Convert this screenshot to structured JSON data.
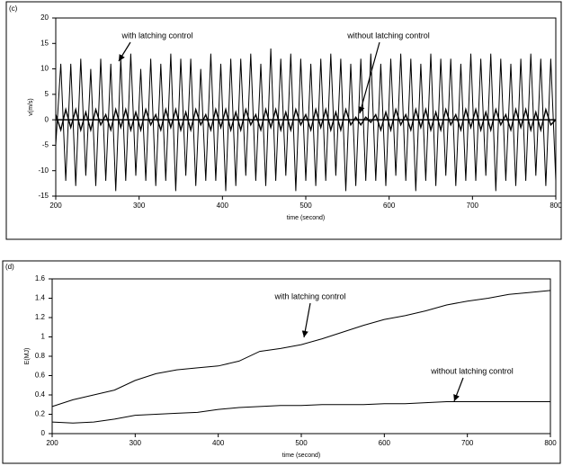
{
  "chart_data": [
    {
      "type": "line",
      "panel_label": "(c)",
      "xlabel": "time (second)",
      "ylabel": "v(m/s)",
      "xlim": [
        200,
        800
      ],
      "ylim": [
        -15,
        20
      ],
      "xticks": [
        200,
        300,
        400,
        500,
        600,
        700,
        800
      ],
      "yticks": [
        -15,
        -10,
        -5,
        0,
        5,
        10,
        15,
        20
      ],
      "annotations": [
        "with latching control",
        "without latching control"
      ],
      "x": [
        200,
        206,
        212,
        218,
        224,
        230,
        236,
        242,
        248,
        254,
        260,
        266,
        272,
        278,
        284,
        290,
        296,
        302,
        308,
        314,
        320,
        326,
        332,
        338,
        344,
        350,
        356,
        362,
        368,
        374,
        380,
        386,
        392,
        398,
        404,
        410,
        416,
        422,
        428,
        434,
        440,
        446,
        452,
        458,
        464,
        470,
        476,
        482,
        488,
        494,
        500,
        506,
        512,
        518,
        524,
        530,
        536,
        542,
        548,
        554,
        560,
        566,
        572,
        578,
        584,
        590,
        596,
        602,
        608,
        614,
        620,
        626,
        632,
        638,
        644,
        650,
        656,
        662,
        668,
        674,
        680,
        686,
        692,
        698,
        704,
        710,
        716,
        722,
        728,
        734,
        740,
        746,
        752,
        758,
        764,
        770,
        776,
        782,
        788,
        794,
        800
      ],
      "series": [
        {
          "name": "with latching control",
          "color": "#000000",
          "width": 1,
          "values": [
            -5,
            11,
            -12,
            11,
            -13,
            12,
            -11,
            10,
            -13,
            12,
            -12,
            11,
            -14,
            12,
            -12,
            13,
            -11,
            10,
            -12,
            12,
            -13,
            11,
            -12,
            13,
            -14,
            12,
            -11,
            12,
            -13,
            10,
            -12,
            13,
            -12,
            11,
            -14,
            12,
            -13,
            12,
            -11,
            13,
            -12,
            11,
            -13,
            14,
            -12,
            12,
            -11,
            13,
            -14,
            12,
            -12,
            11,
            -13,
            12,
            -12,
            13,
            -11,
            12,
            -14,
            11,
            -13,
            12,
            -12,
            13,
            -12,
            11,
            -13,
            12,
            -11,
            13,
            -12,
            12,
            -14,
            11,
            -12,
            13,
            -13,
            12,
            -11,
            12,
            -13,
            11,
            -12,
            13,
            -12,
            12,
            -11,
            13,
            -14,
            12,
            -12,
            11,
            -13,
            12,
            -12,
            13,
            -11,
            12,
            -13,
            12,
            -12
          ]
        },
        {
          "name": "without latching control",
          "color": "#000000",
          "width": 1.4,
          "values": [
            1,
            -2,
            2,
            -1.5,
            2,
            -2,
            1.5,
            -2,
            2,
            -1,
            1,
            -2,
            2,
            -1.5,
            2,
            -2,
            1.5,
            -2,
            2,
            -1,
            1,
            -2,
            2,
            -1.5,
            2,
            -2,
            1.5,
            -2,
            2,
            -1,
            1,
            -2,
            2,
            -1.5,
            2,
            -2,
            1.5,
            -2,
            2,
            -1,
            1,
            -2,
            2,
            -1.5,
            2,
            -2,
            1.5,
            -2,
            2,
            -1,
            1,
            -2,
            2,
            -1.5,
            2,
            -2,
            1.5,
            -2,
            2,
            -1,
            0.5,
            -1,
            0.5,
            -0.5,
            1,
            -2,
            1.5,
            -2,
            2,
            -1,
            1,
            -2,
            2,
            -1.5,
            2,
            -2,
            1.5,
            -2,
            2,
            -1,
            1,
            -2,
            2,
            -1.5,
            2,
            -2,
            1.5,
            -2,
            2,
            -1,
            1,
            -2,
            2,
            -1.5,
            2,
            -2,
            1.5,
            -2,
            2,
            -1,
            0
          ]
        }
      ]
    },
    {
      "type": "line",
      "panel_label": "(d)",
      "xlabel": "time (second)",
      "ylabel": "E(MJ)",
      "xlim": [
        200,
        800
      ],
      "ylim": [
        0,
        1.6
      ],
      "xticks": [
        200,
        300,
        400,
        500,
        600,
        700,
        800
      ],
      "yticks": [
        0,
        0.2,
        0.4,
        0.6,
        0.8,
        1,
        1.2,
        1.4,
        1.6
      ],
      "annotations": [
        "with latching control",
        "without latching control"
      ],
      "x": [
        200,
        225,
        250,
        275,
        300,
        325,
        350,
        375,
        400,
        425,
        450,
        475,
        500,
        525,
        550,
        575,
        600,
        625,
        650,
        675,
        700,
        725,
        750,
        775,
        800
      ],
      "series": [
        {
          "name": "with latching control",
          "color": "#000000",
          "width": 1,
          "values": [
            0.28,
            0.35,
            0.4,
            0.45,
            0.55,
            0.62,
            0.66,
            0.68,
            0.7,
            0.75,
            0.85,
            0.88,
            0.92,
            0.98,
            1.05,
            1.12,
            1.18,
            1.22,
            1.27,
            1.33,
            1.37,
            1.4,
            1.44,
            1.46,
            1.48
          ]
        },
        {
          "name": "without latching control",
          "color": "#000000",
          "width": 1,
          "values": [
            0.12,
            0.11,
            0.12,
            0.15,
            0.19,
            0.2,
            0.21,
            0.22,
            0.25,
            0.27,
            0.28,
            0.29,
            0.29,
            0.3,
            0.3,
            0.3,
            0.31,
            0.31,
            0.32,
            0.33,
            0.33,
            0.33,
            0.33,
            0.33,
            0.33
          ]
        }
      ]
    }
  ]
}
